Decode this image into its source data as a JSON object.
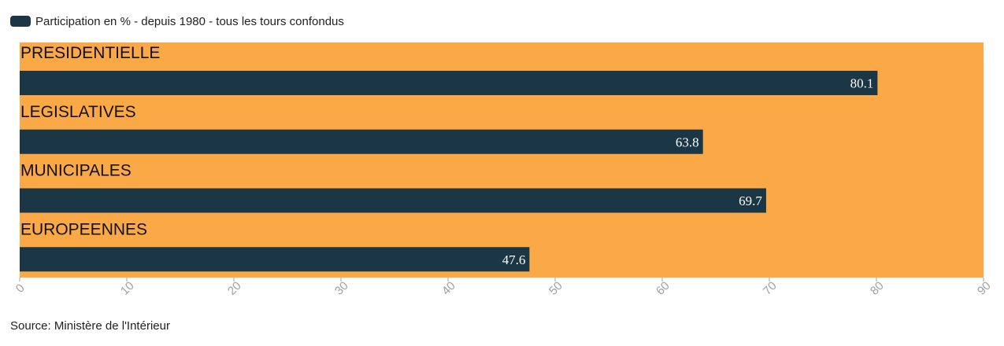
{
  "legend": {
    "label": "Participation en % - depuis 1980 - tous les tours confondus",
    "color": "#1b3644"
  },
  "source": "Source: Ministère de l'Intérieur",
  "chart_data": {
    "type": "bar",
    "orientation": "horizontal",
    "categories": [
      "PRESIDENTIELLE",
      "LEGISLATIVES",
      "MUNICIPALES",
      "EUROPEENNES"
    ],
    "series": [
      {
        "name": "Participation en % - depuis 1980 - tous les tours confondus",
        "values": [
          80.1,
          63.8,
          69.7,
          47.6
        ]
      }
    ],
    "xlim": [
      0,
      90
    ],
    "xticks": [
      0,
      10,
      20,
      30,
      40,
      50,
      60,
      70,
      80,
      90
    ],
    "grid": false,
    "legend_position": "top-left",
    "colors": {
      "bar": "#1b3644",
      "background": "#fba846",
      "tick": "#a0a0a0",
      "value_label": "#ffffff",
      "category_label": "#111111"
    }
  }
}
